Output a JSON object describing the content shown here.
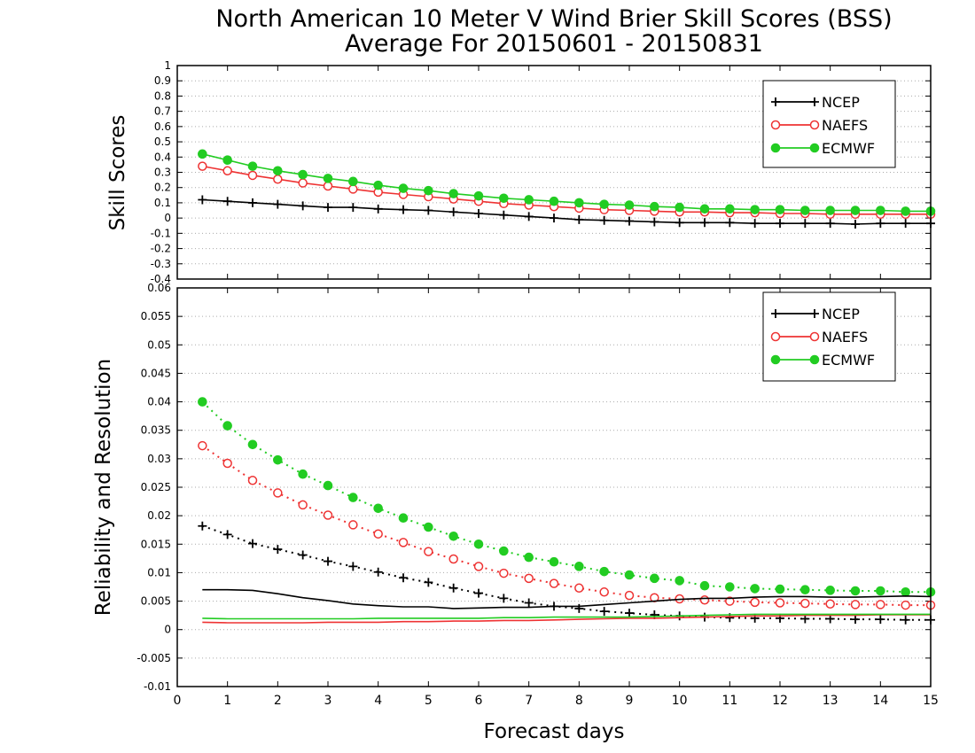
{
  "chart_data": [
    {
      "type": "line",
      "title_line1": "North American 10 Meter V Wind Brier Skill Scores (BSS)",
      "title_line2": "Average For 20150601 - 20150831",
      "ylabel": "Skill Scores",
      "xlim": [
        0,
        15
      ],
      "ylim": [
        -0.4,
        1
      ],
      "yticks": [
        -0.4,
        -0.3,
        -0.2,
        -0.1,
        0,
        0.1,
        0.2,
        0.3,
        0.4,
        0.5,
        0.6,
        0.7,
        0.8,
        0.9,
        1
      ],
      "ytick_labels": [
        "-0.4",
        "-0.3",
        "-0.2",
        "-0.1",
        "0",
        "0.1",
        "0.2",
        "0.3",
        "0.4",
        "0.5",
        "0.6",
        "0.7",
        "0.8",
        "0.9",
        "1"
      ],
      "grid": true,
      "legend_position": "top-right",
      "x": [
        0.5,
        1,
        1.5,
        2,
        2.5,
        3,
        3.5,
        4,
        4.5,
        5,
        5.5,
        6,
        6.5,
        7,
        7.5,
        8,
        8.5,
        9,
        9.5,
        10,
        10.5,
        11,
        11.5,
        12,
        12.5,
        13,
        13.5,
        14,
        14.5,
        15
      ],
      "series": [
        {
          "name": "NCEP",
          "color": "#000000",
          "marker": "plus",
          "values": [
            0.12,
            0.11,
            0.1,
            0.09,
            0.08,
            0.07,
            0.07,
            0.06,
            0.055,
            0.05,
            0.04,
            0.03,
            0.02,
            0.01,
            0.0,
            -0.01,
            -0.015,
            -0.02,
            -0.025,
            -0.03,
            -0.03,
            -0.03,
            -0.035,
            -0.035,
            -0.035,
            -0.035,
            -0.04,
            -0.035,
            -0.035,
            -0.035
          ]
        },
        {
          "name": "NAEFS",
          "color": "#ee3333",
          "marker": "open-circle",
          "values": [
            0.34,
            0.31,
            0.28,
            0.255,
            0.23,
            0.21,
            0.19,
            0.17,
            0.155,
            0.14,
            0.125,
            0.11,
            0.095,
            0.085,
            0.075,
            0.065,
            0.055,
            0.05,
            0.045,
            0.04,
            0.04,
            0.035,
            0.035,
            0.03,
            0.03,
            0.025,
            0.025,
            0.025,
            0.025,
            0.025
          ]
        },
        {
          "name": "ECMWF",
          "color": "#22cc22",
          "marker": "filled-circle",
          "values": [
            0.42,
            0.38,
            0.34,
            0.31,
            0.285,
            0.26,
            0.24,
            0.215,
            0.195,
            0.18,
            0.16,
            0.145,
            0.13,
            0.12,
            0.11,
            0.1,
            0.09,
            0.085,
            0.075,
            0.07,
            0.06,
            0.06,
            0.055,
            0.055,
            0.05,
            0.05,
            0.05,
            0.05,
            0.045,
            0.045
          ]
        }
      ]
    },
    {
      "type": "line",
      "ylabel": "Reliability and Resolution",
      "xlabel": "Forecast days",
      "xlim": [
        0,
        15
      ],
      "ylim": [
        -0.01,
        0.06
      ],
      "xticks": [
        0,
        1,
        2,
        3,
        4,
        5,
        6,
        7,
        8,
        9,
        10,
        11,
        12,
        13,
        14,
        15
      ],
      "xtick_labels": [
        "0",
        "1",
        "2",
        "3",
        "4",
        "5",
        "6",
        "7",
        "8",
        "9",
        "10",
        "11",
        "12",
        "13",
        "14",
        "15"
      ],
      "yticks": [
        -0.01,
        -0.005,
        0,
        0.005,
        0.01,
        0.015,
        0.02,
        0.025,
        0.03,
        0.035,
        0.04,
        0.045,
        0.05,
        0.055,
        0.06
      ],
      "ytick_labels": [
        "-0.01",
        "-0.005",
        "0",
        "0.005",
        "0.01",
        "0.015",
        "0.02",
        "0.025",
        "0.03",
        "0.035",
        "0.04",
        "0.045",
        "0.05",
        "0.055",
        "0.06"
      ],
      "grid": true,
      "legend_position": "top-right",
      "x": [
        0.5,
        1,
        1.5,
        2,
        2.5,
        3,
        3.5,
        4,
        4.5,
        5,
        5.5,
        6,
        6.5,
        7,
        7.5,
        8,
        8.5,
        9,
        9.5,
        10,
        10.5,
        11,
        11.5,
        12,
        12.5,
        13,
        13.5,
        14,
        14.5,
        15
      ],
      "legend": [
        {
          "name": "NCEP",
          "color": "#000000",
          "marker": "plus"
        },
        {
          "name": "NAEFS",
          "color": "#ee3333",
          "marker": "open-circle"
        },
        {
          "name": "ECMWF",
          "color": "#22cc22",
          "marker": "filled-circle"
        }
      ],
      "series": [
        {
          "color": "#000000",
          "marker": "plus",
          "style": "dotted",
          "values": [
            0.0182,
            0.0167,
            0.0151,
            0.0141,
            0.0131,
            0.012,
            0.0111,
            0.0101,
            0.0091,
            0.0083,
            0.0073,
            0.0064,
            0.0055,
            0.0047,
            0.0041,
            0.0037,
            0.0032,
            0.0029,
            0.0026,
            0.0024,
            0.0022,
            0.0021,
            0.002,
            0.002,
            0.0019,
            0.0019,
            0.0018,
            0.0018,
            0.0017,
            0.0017
          ]
        },
        {
          "color": "#ee3333",
          "marker": "open-circle",
          "style": "dotted",
          "values": [
            0.0323,
            0.0292,
            0.0262,
            0.024,
            0.0219,
            0.0201,
            0.0184,
            0.0168,
            0.0153,
            0.0137,
            0.0124,
            0.0111,
            0.0099,
            0.009,
            0.0081,
            0.0073,
            0.0066,
            0.006,
            0.0056,
            0.0054,
            0.0052,
            0.005,
            0.0048,
            0.0047,
            0.0046,
            0.0045,
            0.0044,
            0.0044,
            0.0043,
            0.0043
          ]
        },
        {
          "color": "#22cc22",
          "marker": "filled-circle",
          "style": "dotted",
          "values": [
            0.04,
            0.0358,
            0.0325,
            0.0298,
            0.0273,
            0.0253,
            0.0232,
            0.0213,
            0.0196,
            0.018,
            0.0164,
            0.015,
            0.0138,
            0.0127,
            0.0119,
            0.0111,
            0.0102,
            0.0096,
            0.009,
            0.0086,
            0.0077,
            0.0075,
            0.0072,
            0.0071,
            0.007,
            0.0069,
            0.0068,
            0.0068,
            0.0066,
            0.0066
          ]
        },
        {
          "color": "#000000",
          "marker": "none",
          "style": "solid",
          "values": [
            0.007,
            0.007,
            0.0069,
            0.0063,
            0.0056,
            0.0051,
            0.0045,
            0.0042,
            0.004,
            0.004,
            0.0037,
            0.0038,
            0.0039,
            0.0039,
            0.0041,
            0.0041,
            0.0044,
            0.0047,
            0.005,
            0.0053,
            0.0055,
            0.0055,
            0.0057,
            0.0058,
            0.0058,
            0.0057,
            0.0057,
            0.0058,
            0.0059,
            0.0058
          ]
        },
        {
          "color": "#ee3333",
          "marker": "none",
          "style": "solid",
          "values": [
            0.0013,
            0.0012,
            0.0012,
            0.0012,
            0.0012,
            0.0013,
            0.0013,
            0.0013,
            0.0014,
            0.0014,
            0.0015,
            0.0015,
            0.0016,
            0.0016,
            0.0017,
            0.0018,
            0.0019,
            0.002,
            0.002,
            0.0021,
            0.0022,
            0.0023,
            0.0024,
            0.0024,
            0.0025,
            0.0025,
            0.0025,
            0.0026,
            0.0026,
            0.0026
          ]
        },
        {
          "color": "#22cc22",
          "marker": "none",
          "style": "solid",
          "values": [
            0.002,
            0.0019,
            0.0019,
            0.0019,
            0.0019,
            0.0019,
            0.0019,
            0.002,
            0.002,
            0.002,
            0.002,
            0.002,
            0.0021,
            0.0021,
            0.0022,
            0.0022,
            0.0022,
            0.0022,
            0.0023,
            0.0024,
            0.0025,
            0.0026,
            0.0027,
            0.0027,
            0.0027,
            0.0027,
            0.0027,
            0.0027,
            0.0027,
            0.0027
          ]
        }
      ]
    }
  ]
}
